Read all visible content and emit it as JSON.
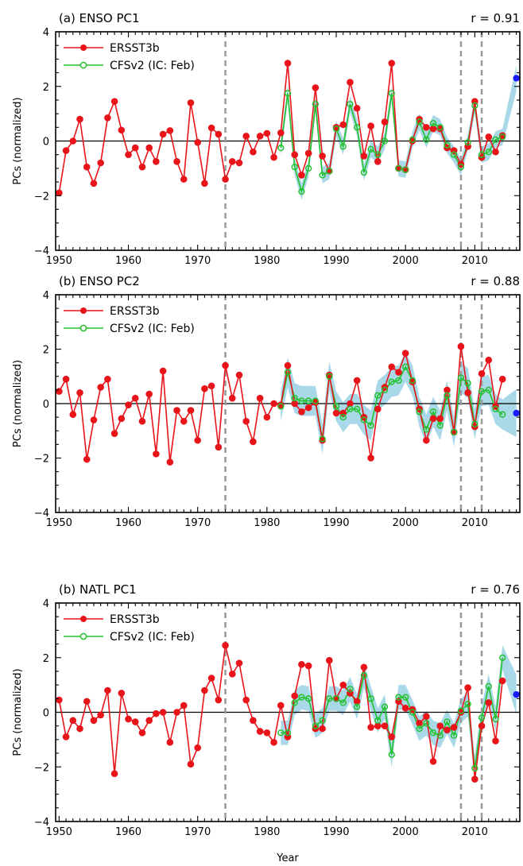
{
  "figure": {
    "xlabel": "Year"
  },
  "colors": {
    "obs": "#e8141a",
    "model": "#22c22e",
    "spread": "#a9d8e8",
    "forecast_dot": "#1a1aff",
    "vline": "#999999"
  },
  "chart_data": [
    {
      "type": "line",
      "title": "(a) ENSO PC1",
      "r_label": "r = 0.91",
      "ylabel": "PCs (normalized)",
      "xlim": [
        1949.5,
        2016.5
      ],
      "ylim": [
        -4,
        4
      ],
      "xticks": [
        1950,
        1960,
        1970,
        1980,
        1990,
        2000,
        2010
      ],
      "yticks": [
        -4,
        -2,
        0,
        2,
        4
      ],
      "vlines": [
        1974,
        2008,
        2011
      ],
      "legend": {
        "position": "top-left",
        "entries": [
          "ERSST3b",
          "CFSv2 (IC: Feb)"
        ]
      },
      "series": [
        {
          "name": "ERSST3b",
          "color": "#e8141a",
          "x": [
            1950,
            1951,
            1952,
            1953,
            1954,
            1955,
            1956,
            1957,
            1958,
            1959,
            1960,
            1961,
            1962,
            1963,
            1964,
            1965,
            1966,
            1967,
            1968,
            1969,
            1970,
            1971,
            1972,
            1973,
            1974,
            1975,
            1976,
            1977,
            1978,
            1979,
            1980,
            1981,
            1982,
            1983,
            1984,
            1985,
            1986,
            1987,
            1988,
            1989,
            1990,
            1991,
            1992,
            1993,
            1994,
            1995,
            1996,
            1997,
            1998,
            1999,
            2000,
            2001,
            2002,
            2003,
            2004,
            2005,
            2006,
            2007,
            2008,
            2009,
            2010,
            2011,
            2012,
            2013,
            2014
          ],
          "y": [
            -1.9,
            -0.35,
            0.0,
            0.8,
            -0.95,
            -1.55,
            -0.8,
            0.85,
            1.45,
            0.4,
            -0.5,
            -0.25,
            -0.95,
            -0.25,
            -0.75,
            0.25,
            0.38,
            -0.75,
            -1.4,
            1.4,
            -0.05,
            -1.55,
            0.48,
            0.25,
            -1.4,
            -0.75,
            -0.8,
            0.18,
            -0.4,
            0.18,
            0.28,
            -0.6,
            0.3,
            2.85,
            -0.5,
            -1.25,
            -0.45,
            1.95,
            -0.55,
            -1.1,
            0.5,
            0.6,
            2.15,
            1.2,
            -0.55,
            0.55,
            -0.75,
            0.7,
            2.85,
            -1.0,
            -1.05,
            0.0,
            0.8,
            0.5,
            0.45,
            0.45,
            -0.25,
            -0.35,
            -0.85,
            -0.2,
            1.45,
            -0.6,
            0.15,
            -0.4,
            0.2
          ]
        },
        {
          "name": "CFSv2 (IC: Feb)",
          "color": "#22c22e",
          "x": [
            1982,
            1983,
            1984,
            1985,
            1986,
            1987,
            1988,
            1989,
            1990,
            1991,
            1992,
            1993,
            1994,
            1995,
            1996,
            1997,
            1998,
            1999,
            2000,
            2001,
            2002,
            2003,
            2004,
            2005,
            2006,
            2007,
            2008,
            2009,
            2010,
            2011,
            2012,
            2013,
            2014
          ],
          "y": [
            -0.25,
            1.75,
            -0.95,
            -1.85,
            -1.0,
            1.35,
            -1.25,
            -1.1,
            0.45,
            -0.2,
            1.35,
            0.5,
            -1.15,
            -0.3,
            -0.5,
            0.0,
            1.75,
            -1.0,
            -1.05,
            0.05,
            0.7,
            0.05,
            0.65,
            0.5,
            -0.15,
            -0.5,
            -0.95,
            -0.05,
            1.3,
            -0.5,
            -0.4,
            0.05,
            0.15
          ],
          "spread": 0.3
        }
      ],
      "forecast_point": {
        "x": 2016,
        "y": 2.3
      }
    },
    {
      "type": "line",
      "title": "(b) ENSO PC2",
      "r_label": "r = 0.88",
      "ylabel": "PCs (normalized)",
      "xlim": [
        1949.5,
        2016.5
      ],
      "ylim": [
        -4,
        4
      ],
      "xticks": [
        1950,
        1960,
        1970,
        1980,
        1990,
        2000,
        2010
      ],
      "yticks": [
        -4,
        -2,
        0,
        2,
        4
      ],
      "vlines": [
        1974,
        2008,
        2011
      ],
      "legend": {
        "position": "top-left",
        "entries": [
          "ERSST3b",
          "CFSv2 (IC: Feb)"
        ]
      },
      "series": [
        {
          "name": "ERSST3b",
          "color": "#e8141a",
          "x": [
            1950,
            1951,
            1952,
            1953,
            1954,
            1955,
            1956,
            1957,
            1958,
            1959,
            1960,
            1961,
            1962,
            1963,
            1964,
            1965,
            1966,
            1967,
            1968,
            1969,
            1970,
            1971,
            1972,
            1973,
            1974,
            1975,
            1976,
            1977,
            1978,
            1979,
            1980,
            1981,
            1982,
            1983,
            1984,
            1985,
            1986,
            1987,
            1988,
            1989,
            1990,
            1991,
            1992,
            1993,
            1994,
            1995,
            1996,
            1997,
            1998,
            1999,
            2000,
            2001,
            2002,
            2003,
            2004,
            2005,
            2006,
            2007,
            2008,
            2009,
            2010,
            2011,
            2012,
            2013,
            2014
          ],
          "y": [
            0.45,
            0.9,
            -0.4,
            0.4,
            -2.05,
            -0.6,
            0.6,
            0.9,
            -1.1,
            -0.55,
            -0.05,
            0.2,
            -0.65,
            0.35,
            -1.85,
            1.2,
            -2.15,
            -0.25,
            -0.65,
            -0.25,
            -1.35,
            0.55,
            0.65,
            -1.6,
            1.4,
            0.2,
            1.05,
            -0.65,
            -1.4,
            0.2,
            -0.5,
            0.0,
            -0.05,
            1.4,
            0.0,
            -0.3,
            -0.15,
            0.05,
            -1.35,
            1.05,
            -0.35,
            -0.35,
            0.0,
            0.85,
            -0.5,
            -2.0,
            -0.2,
            0.6,
            1.35,
            1.15,
            1.85,
            0.8,
            -0.2,
            -1.35,
            -0.55,
            -0.55,
            0.5,
            -1.05,
            2.1,
            0.4,
            -0.85,
            1.1,
            1.6,
            -0.1,
            0.9
          ]
        },
        {
          "name": "CFSv2 (IC: Feb)",
          "color": "#22c22e",
          "x": [
            1982,
            1983,
            1984,
            1985,
            1986,
            1987,
            1988,
            1989,
            1990,
            1991,
            1992,
            1993,
            1994,
            1995,
            1996,
            1997,
            1998,
            1999,
            2000,
            2001,
            2002,
            2003,
            2004,
            2005,
            2006,
            2007,
            2008,
            2009,
            2010,
            2011,
            2012,
            2013,
            2014
          ],
          "y": [
            -0.1,
            1.15,
            0.2,
            0.1,
            0.1,
            0.1,
            -1.3,
            1.0,
            -0.1,
            -0.5,
            -0.2,
            -0.2,
            -0.6,
            -0.8,
            0.3,
            0.5,
            0.8,
            0.85,
            1.35,
            0.85,
            -0.3,
            -0.95,
            -0.3,
            -0.8,
            0.3,
            -1.05,
            0.95,
            0.75,
            -0.75,
            0.45,
            0.5,
            -0.2,
            -0.4
          ],
          "spread": 0.55
        }
      ],
      "forecast_point": {
        "x": 2016,
        "y": -0.35
      }
    },
    {
      "type": "line",
      "title": "(b) NATL PC1",
      "r_label": "r = 0.76",
      "ylabel": "PCs (normalized)",
      "xlim": [
        1949.5,
        2016.5
      ],
      "ylim": [
        -4,
        4
      ],
      "xticks": [
        1950,
        1960,
        1970,
        1980,
        1990,
        2000,
        2010
      ],
      "yticks": [
        -4,
        -2,
        0,
        2,
        4
      ],
      "vlines": [
        1974,
        2008,
        2011
      ],
      "legend": {
        "position": "top-left",
        "entries": [
          "ERSST3b",
          "CFSv2 (IC: Feb)"
        ]
      },
      "series": [
        {
          "name": "ERSST3b",
          "color": "#e8141a",
          "x": [
            1950,
            1951,
            1952,
            1953,
            1954,
            1955,
            1956,
            1957,
            1958,
            1959,
            1960,
            1961,
            1962,
            1963,
            1964,
            1965,
            1966,
            1967,
            1968,
            1969,
            1970,
            1971,
            1972,
            1973,
            1974,
            1975,
            1976,
            1977,
            1978,
            1979,
            1980,
            1981,
            1982,
            1983,
            1984,
            1985,
            1986,
            1987,
            1988,
            1989,
            1990,
            1991,
            1992,
            1993,
            1994,
            1995,
            1996,
            1997,
            1998,
            1999,
            2000,
            2001,
            2002,
            2003,
            2004,
            2005,
            2006,
            2007,
            2008,
            2009,
            2010,
            2011,
            2012,
            2013,
            2014
          ],
          "y": [
            0.45,
            -0.9,
            -0.3,
            -0.6,
            0.4,
            -0.3,
            -0.1,
            0.8,
            -2.25,
            0.7,
            -0.25,
            -0.35,
            -0.75,
            -0.3,
            -0.05,
            0.0,
            -1.1,
            0.0,
            0.25,
            -1.9,
            -1.3,
            0.8,
            1.25,
            0.45,
            2.45,
            1.4,
            1.8,
            0.45,
            -0.3,
            -0.7,
            -0.75,
            -1.1,
            0.25,
            -0.9,
            0.6,
            1.75,
            1.7,
            -0.6,
            -0.6,
            1.9,
            0.5,
            1.0,
            0.7,
            0.4,
            1.65,
            -0.55,
            -0.5,
            -0.5,
            -0.9,
            0.4,
            0.15,
            0.1,
            -0.4,
            -0.15,
            -1.8,
            -0.5,
            -0.65,
            -0.55,
            0.0,
            0.9,
            -2.45,
            -0.5,
            0.35,
            -1.05,
            1.15
          ]
        },
        {
          "name": "CFSv2 (IC: Feb)",
          "color": "#22c22e",
          "x": [
            1982,
            1983,
            1984,
            1985,
            1986,
            1987,
            1988,
            1989,
            1990,
            1991,
            1992,
            1993,
            1994,
            1995,
            1996,
            1997,
            1998,
            1999,
            2000,
            2001,
            2002,
            2003,
            2004,
            2005,
            2006,
            2007,
            2008,
            2009,
            2010,
            2011,
            2012,
            2013,
            2014,
            2015
          ],
          "y": [
            -0.75,
            -0.75,
            0.35,
            0.55,
            0.5,
            -0.5,
            -0.3,
            0.5,
            0.5,
            0.35,
            0.85,
            0.2,
            1.35,
            0.5,
            -0.3,
            0.2,
            -1.55,
            0.55,
            0.55,
            0.0,
            -0.6,
            -0.4,
            -0.75,
            -0.85,
            -0.35,
            -0.85,
            0.05,
            0.3,
            -2.05,
            -0.2,
            0.95,
            -0.25,
            2.0,
            null
          ],
          "spread": 0.45
        }
      ],
      "forecast_point": {
        "x": 2016,
        "y": 0.65
      }
    }
  ]
}
